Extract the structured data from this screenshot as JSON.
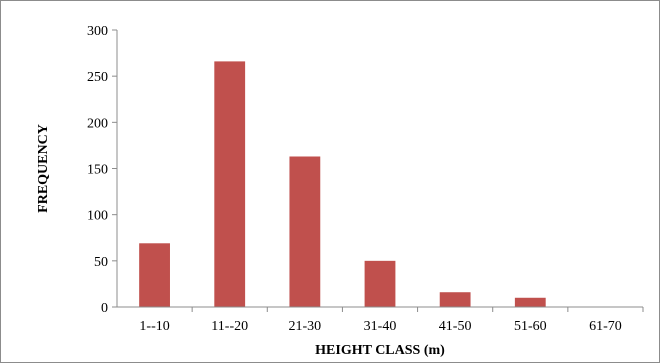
{
  "chart_data": {
    "type": "bar",
    "categories": [
      "1--10",
      "11--20",
      "21-30",
      "31-40",
      "41-50",
      "51-60",
      "61-70"
    ],
    "values": [
      69,
      266,
      163,
      50,
      16,
      10,
      0
    ],
    "xlabel": "HEIGHT CLASS (m)",
    "ylabel": "FREQUENCY",
    "ylim": [
      0,
      300
    ],
    "yticks": [
      0,
      50,
      100,
      150,
      200,
      250,
      300
    ],
    "grid": false,
    "bar_color": "#c0504d",
    "frame_color": "#8c8c8c"
  }
}
